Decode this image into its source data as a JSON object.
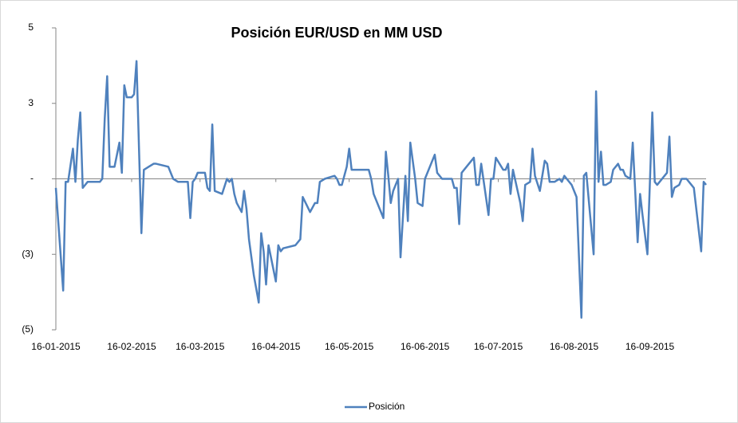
{
  "chart_data": {
    "type": "line",
    "title": "Posición EUR/USD en MM USD",
    "xlim": [
      "2015-01-16",
      "2015-10-09"
    ],
    "xticks": [
      {
        "value": "2015-01-16",
        "label": "16-01-2015"
      },
      {
        "value": "2015-02-16",
        "label": "16-02-2015"
      },
      {
        "value": "2015-03-16",
        "label": "16-03-2015"
      },
      {
        "value": "2015-04-16",
        "label": "16-04-2015"
      },
      {
        "value": "2015-05-16",
        "label": "16-05-2015"
      },
      {
        "value": "2015-06-16",
        "label": "16-06-2015"
      },
      {
        "value": "2015-07-16",
        "label": "16-07-2015"
      },
      {
        "value": "2015-08-16",
        "label": "16-08-2015"
      },
      {
        "value": "2015-09-16",
        "label": "16-09-2015"
      }
    ],
    "ylim": [
      -5,
      5
    ],
    "yticks": [
      {
        "value": 5,
        "label": "5"
      },
      {
        "value": 2.5,
        "label": "3"
      },
      {
        "value": 0,
        "label": "-"
      },
      {
        "value": -2.5,
        "label": "(3)"
      },
      {
        "value": -5,
        "label": "(5)"
      }
    ],
    "legend": "bottom",
    "x": [
      "2015-01-16",
      "2015-01-19",
      "2015-01-20",
      "2015-01-21",
      "2015-01-23",
      "2015-01-24",
      "2015-01-25",
      "2015-01-26",
      "2015-01-27",
      "2015-01-29",
      "2015-01-31",
      "2015-02-03",
      "2015-02-04",
      "2015-02-05",
      "2015-02-06",
      "2015-02-07",
      "2015-02-09",
      "2015-02-11",
      "2015-02-12",
      "2015-02-13",
      "2015-02-14",
      "2015-02-16",
      "2015-02-17",
      "2015-02-18",
      "2015-02-20",
      "2015-02-21",
      "2015-02-23",
      "2015-02-25",
      "2015-02-26",
      "2015-03-03",
      "2015-03-05",
      "2015-03-07",
      "2015-03-11",
      "2015-03-12",
      "2015-03-13",
      "2015-03-14",
      "2015-03-15",
      "2015-03-18",
      "2015-03-19",
      "2015-03-20",
      "2015-03-21",
      "2015-03-22",
      "2015-03-25",
      "2015-03-27",
      "2015-03-28",
      "2015-03-29",
      "2015-03-30",
      "2015-03-31",
      "2015-04-02",
      "2015-04-03",
      "2015-04-04",
      "2015-04-05",
      "2015-04-07",
      "2015-04-09",
      "2015-04-10",
      "2015-04-11",
      "2015-04-12",
      "2015-04-13",
      "2015-04-16",
      "2015-04-17",
      "2015-04-18",
      "2015-04-19",
      "2015-04-24",
      "2015-04-26",
      "2015-04-27",
      "2015-04-30",
      "2015-05-02",
      "2015-05-03",
      "2015-05-04",
      "2015-05-06",
      "2015-05-10",
      "2015-05-11",
      "2015-05-12",
      "2015-05-13",
      "2015-05-15",
      "2015-05-16",
      "2015-05-17",
      "2015-05-19",
      "2015-05-21",
      "2015-05-22",
      "2015-05-24",
      "2015-05-25",
      "2015-05-26",
      "2015-05-30",
      "2015-05-31",
      "2015-06-01",
      "2015-06-02",
      "2015-06-03",
      "2015-06-05",
      "2015-06-06",
      "2015-06-08",
      "2015-06-09",
      "2015-06-10",
      "2015-06-12",
      "2015-06-13",
      "2015-06-15",
      "2015-06-16",
      "2015-06-20",
      "2015-06-21",
      "2015-06-23",
      "2015-06-25",
      "2015-06-27",
      "2015-06-28",
      "2015-06-29",
      "2015-06-30",
      "2015-07-01",
      "2015-07-03",
      "2015-07-06",
      "2015-07-07",
      "2015-07-08",
      "2015-07-09",
      "2015-07-12",
      "2015-07-13",
      "2015-07-14",
      "2015-07-15",
      "2015-07-18",
      "2015-07-19",
      "2015-07-20",
      "2015-07-21",
      "2015-07-22",
      "2015-07-25",
      "2015-07-26",
      "2015-07-27",
      "2015-07-29",
      "2015-07-30",
      "2015-07-31",
      "2015-08-02",
      "2015-08-04",
      "2015-08-05",
      "2015-08-06",
      "2015-08-08",
      "2015-08-10",
      "2015-08-11",
      "2015-08-12",
      "2015-08-13",
      "2015-08-15",
      "2015-08-17",
      "2015-08-19",
      "2015-08-20",
      "2015-08-21",
      "2015-08-24",
      "2015-08-25",
      "2015-08-26",
      "2015-08-27",
      "2015-08-28",
      "2015-08-29",
      "2015-08-31",
      "2015-09-01",
      "2015-09-03",
      "2015-09-04",
      "2015-09-05",
      "2015-09-06",
      "2015-09-08",
      "2015-09-09",
      "2015-09-10",
      "2015-09-11",
      "2015-09-12",
      "2015-09-13",
      "2015-09-15",
      "2015-09-17",
      "2015-09-18",
      "2015-09-19",
      "2015-09-22",
      "2015-09-23",
      "2015-09-24",
      "2015-09-25",
      "2015-09-26",
      "2015-09-28",
      "2015-09-29",
      "2015-09-30",
      "2015-10-01",
      "2015-10-03",
      "2015-10-04",
      "2015-10-07",
      "2015-10-08",
      "2015-10-09"
    ],
    "series": [
      {
        "name": "Posición",
        "color": "#4f81bd",
        "values": [
          -0.3,
          -3.7,
          -0.1,
          -0.1,
          1.0,
          -0.1,
          1.3,
          2.2,
          -0.3,
          -0.1,
          -0.1,
          -0.1,
          0,
          2.0,
          3.4,
          0.4,
          0.4,
          1.2,
          0.2,
          3.1,
          2.7,
          2.7,
          2.8,
          3.9,
          -1.8,
          0.3,
          0.4,
          0.5,
          0.5,
          0.4,
          0,
          -0.1,
          -0.1,
          -1.3,
          -0.1,
          0,
          0.2,
          0.2,
          -0.3,
          -0.4,
          1.8,
          -0.4,
          -0.5,
          0,
          -0.1,
          0,
          -0.5,
          -0.8,
          -1.1,
          -0.4,
          -1.0,
          -2.0,
          -3.2,
          -4.1,
          -1.8,
          -2.4,
          -3.5,
          -2.2,
          -3.4,
          -2.2,
          -2.4,
          -2.3,
          -2.2,
          -2.0,
          -0.6,
          -1.1,
          -0.8,
          -0.8,
          -0.1,
          0,
          0.1,
          0,
          -0.2,
          -0.2,
          0.4,
          1.0,
          0.3,
          0.3,
          0.3,
          0.3,
          0.3,
          0,
          -0.5,
          -1.3,
          0.9,
          0.1,
          -0.8,
          -0.4,
          0,
          -2.6,
          0.1,
          -1.4,
          1.2,
          0,
          -0.8,
          -0.9,
          0,
          0.8,
          0.2,
          0,
          0,
          0,
          -0.3,
          -0.3,
          -1.5,
          0.2,
          0.4,
          0.7,
          -0.2,
          -0.2,
          0.5,
          -1.2,
          0,
          0,
          0.7,
          0.3,
          0.3,
          0.5,
          -0.5,
          0.3,
          -0.8,
          -1.4,
          -0.2,
          -0.1,
          1.0,
          0.1,
          -0.4,
          0.6,
          0.5,
          -0.1,
          -0.1,
          0,
          -0.1,
          0.1,
          0,
          -0.2,
          -0.6,
          -4.6,
          0.1,
          0.2,
          -2.5,
          2.9,
          -0.1,
          0.9,
          -0.2,
          -0.2,
          -0.1,
          0.3,
          0.5,
          0.3,
          0.3,
          0.1,
          0,
          1.2,
          -0.4,
          -2.1,
          -0.5,
          -1.2,
          -2.5,
          2.2,
          -0.1,
          -0.2,
          0.1,
          0.2,
          1.4,
          -0.6,
          -0.3,
          -0.2,
          0,
          0,
          0,
          -0.2,
          -0.3,
          -2.4,
          -0.1,
          -0.2
        ]
      }
    ]
  }
}
